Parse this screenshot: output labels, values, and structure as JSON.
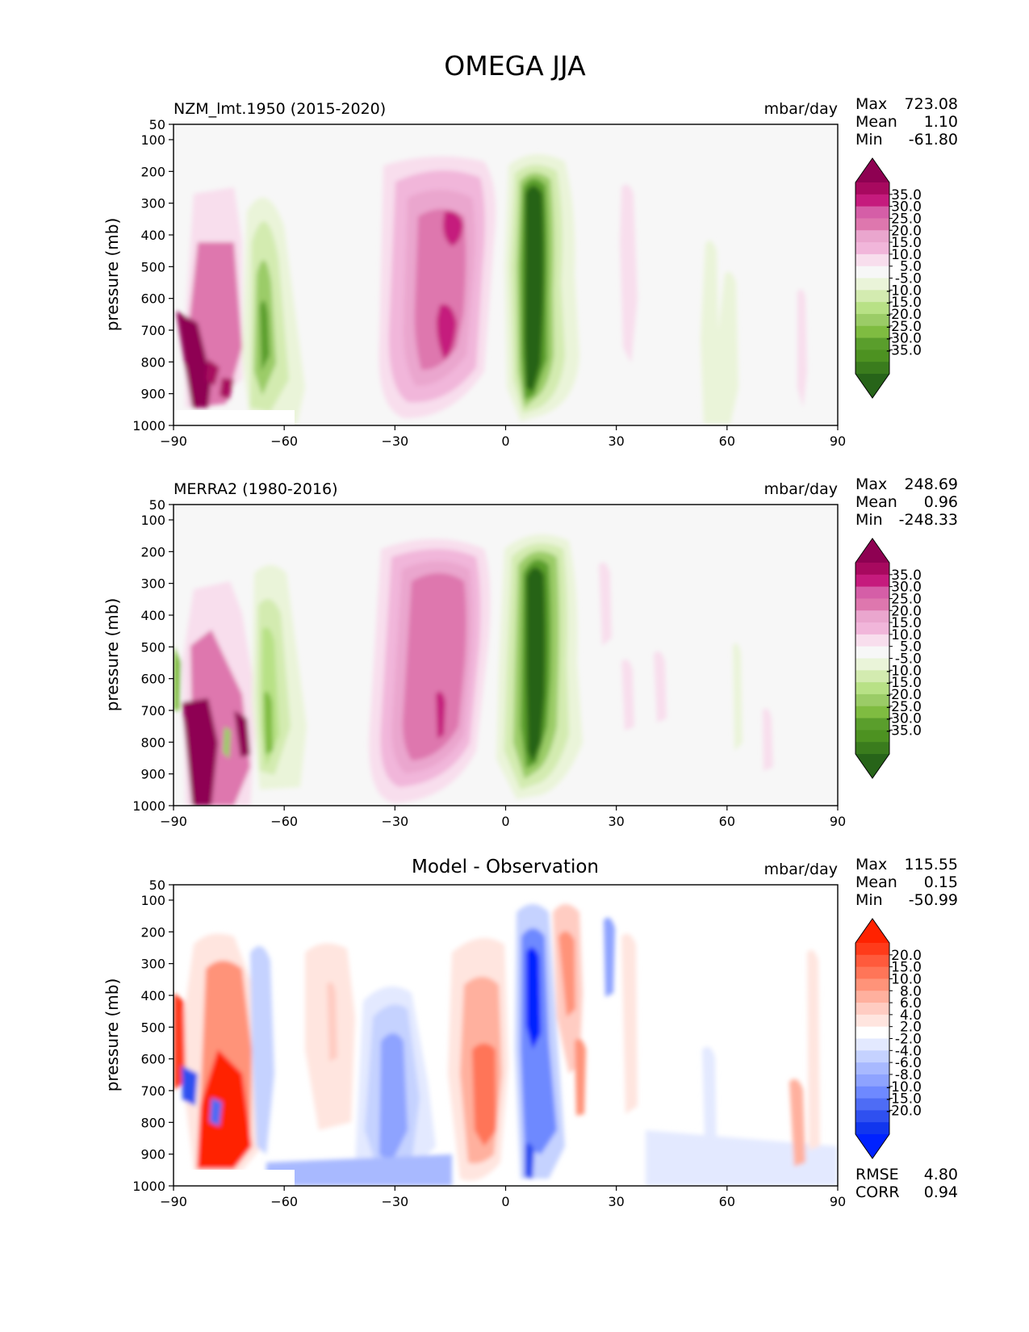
{
  "figure": {
    "title": "OMEGA JJA"
  },
  "chart_data": [
    {
      "type": "heatmap",
      "title": "NZM_lmt.1950 (2015-2020)",
      "units": "mbar/day",
      "xlabel": "",
      "ylabel": "pressure (mb)",
      "xlim": [
        -90,
        90
      ],
      "ylim": [
        1000,
        50
      ],
      "xticks": [
        "−90",
        "−60",
        "−30",
        "0",
        "30",
        "60",
        "90"
      ],
      "yticks": [
        "50",
        "100",
        "200",
        "300",
        "400",
        "500",
        "600",
        "700",
        "800",
        "900",
        "1000"
      ],
      "stats": [
        {
          "label": "Max",
          "value": "723.08"
        },
        {
          "label": "Mean",
          "value": "1.10"
        },
        {
          "label": "Min",
          "value": "-61.80"
        }
      ],
      "colorbar": {
        "labels": [
          "35.0",
          "30.0",
          "25.0",
          "20.0",
          "15.0",
          "10.0",
          "5.0",
          "-5.0",
          "-10.0",
          "-15.0",
          "-20.0",
          "-25.0",
          "-30.0",
          "-35.0"
        ],
        "colors": [
          "#8e0152",
          "#a8095f",
          "#c51b7d",
          "#d55ea7",
          "#de77ae",
          "#eaa6ce",
          "#f1b6da",
          "#f8deed",
          "#f7f7f7",
          "#eaf4d9",
          "#d3ebb0",
          "#b8e186",
          "#9bcc67",
          "#7fbc41",
          "#5a9e2c",
          "#4d9221",
          "#3a7c1d",
          "#276419"
        ]
      },
      "features": [
        {
          "name": "Southern Hemisphere subsidence",
          "lon_range": [
            -88,
            -70
          ],
          "p_range": [
            250,
            950
          ],
          "sign": "positive"
        },
        {
          "name": "ascent near -65",
          "lon_range": [
            -72,
            -55
          ],
          "p_range": [
            230,
            1000
          ],
          "sign": "negative"
        },
        {
          "name": "subtropical descent",
          "lon_range": [
            -38,
            -5
          ],
          "p_range": [
            180,
            1000
          ],
          "sign": "positive",
          "peak": 30
        },
        {
          "name": "ITCZ ascent",
          "lon_range": [
            0,
            20
          ],
          "p_range": [
            150,
            1000
          ],
          "sign": "negative",
          "peak": -35
        }
      ]
    },
    {
      "type": "heatmap",
      "title": "MERRA2 (1980-2016)",
      "units": "mbar/day",
      "xlabel": "",
      "ylabel": "pressure (mb)",
      "xlim": [
        -90,
        90
      ],
      "ylim": [
        1000,
        50
      ],
      "xticks": [
        "−90",
        "−60",
        "−30",
        "0",
        "30",
        "60",
        "90"
      ],
      "yticks": [
        "50",
        "100",
        "200",
        "300",
        "400",
        "500",
        "600",
        "700",
        "800",
        "900",
        "1000"
      ],
      "stats": [
        {
          "label": "Max",
          "value": "248.69"
        },
        {
          "label": "Mean",
          "value": "0.96"
        },
        {
          "label": "Min",
          "value": "-248.33"
        }
      ],
      "colorbar": {
        "labels": [
          "35.0",
          "30.0",
          "25.0",
          "20.0",
          "15.0",
          "10.0",
          "5.0",
          "-5.0",
          "-10.0",
          "-15.0",
          "-20.0",
          "-25.0",
          "-30.0",
          "-35.0"
        ],
        "colors": [
          "#8e0152",
          "#a8095f",
          "#c51b7d",
          "#d55ea7",
          "#de77ae",
          "#eaa6ce",
          "#f1b6da",
          "#f8deed",
          "#f7f7f7",
          "#eaf4d9",
          "#d3ebb0",
          "#b8e186",
          "#9bcc67",
          "#7fbc41",
          "#5a9e2c",
          "#4d9221",
          "#3a7c1d",
          "#276419"
        ]
      },
      "features": [
        {
          "name": "Southern Hemisphere subsidence",
          "lon_range": [
            -88,
            -65
          ],
          "p_range": [
            280,
            1000
          ],
          "sign": "positive"
        },
        {
          "name": "ascent near -65",
          "lon_range": [
            -72,
            -55
          ],
          "p_range": [
            230,
            1000
          ],
          "sign": "negative"
        },
        {
          "name": "subtropical descent",
          "lon_range": [
            -38,
            -5
          ],
          "p_range": [
            180,
            1000
          ],
          "sign": "positive",
          "peak": 25
        },
        {
          "name": "ITCZ ascent",
          "lon_range": [
            0,
            20
          ],
          "p_range": [
            160,
            1000
          ],
          "sign": "negative",
          "peak": -35
        }
      ]
    },
    {
      "type": "heatmap",
      "title": "Model - Observation",
      "units": "mbar/day",
      "xlabel": "",
      "ylabel": "pressure (mb)",
      "xlim": [
        -90,
        90
      ],
      "ylim": [
        1000,
        50
      ],
      "xticks": [
        "−90",
        "−60",
        "−30",
        "0",
        "30",
        "60",
        "90"
      ],
      "yticks": [
        "50",
        "100",
        "200",
        "300",
        "400",
        "500",
        "600",
        "700",
        "800",
        "900",
        "1000"
      ],
      "stats": [
        {
          "label": "Max",
          "value": "115.55"
        },
        {
          "label": "Mean",
          "value": "0.15"
        },
        {
          "label": "Min",
          "value": "-50.99"
        }
      ],
      "metrics": [
        {
          "label": "RMSE",
          "value": "4.80"
        },
        {
          "label": "CORR",
          "value": "0.94"
        }
      ],
      "colorbar": {
        "labels": [
          "20.0",
          "15.0",
          "10.0",
          "8.0",
          "6.0",
          "4.0",
          "2.0",
          "-2.0",
          "-4.0",
          "-6.0",
          "-8.0",
          "-10.0",
          "-15.0",
          "-20.0"
        ],
        "colors": [
          "#ff2200",
          "#ff3b1a",
          "#ff5a3c",
          "#ff7558",
          "#ff9379",
          "#ffb09e",
          "#ffccc2",
          "#ffe5df",
          "#ffffff",
          "#e3e9ff",
          "#c5d2ff",
          "#a8b9ff",
          "#8ea3ff",
          "#6e89ff",
          "#4e6cf5",
          "#2f50f0",
          "#1136ee",
          "#0022ff"
        ]
      },
      "features": [
        {
          "name": "positive bias SH",
          "lon_range": [
            -90,
            -70
          ],
          "p_range": [
            250,
            950
          ],
          "sign": "positive"
        },
        {
          "name": "negative bias -30",
          "lon_range": [
            -42,
            -20
          ],
          "p_range": [
            380,
            1000
          ],
          "sign": "negative"
        },
        {
          "name": "positive bias -5",
          "lon_range": [
            -18,
            0
          ],
          "p_range": [
            170,
            950
          ],
          "sign": "positive"
        },
        {
          "name": "negative bias 5",
          "lon_range": [
            2,
            15
          ],
          "p_range": [
            120,
            1000
          ],
          "sign": "negative"
        },
        {
          "name": "positive bias 15",
          "lon_range": [
            10,
            22
          ],
          "p_range": [
            120,
            850
          ],
          "sign": "positive"
        }
      ]
    }
  ]
}
